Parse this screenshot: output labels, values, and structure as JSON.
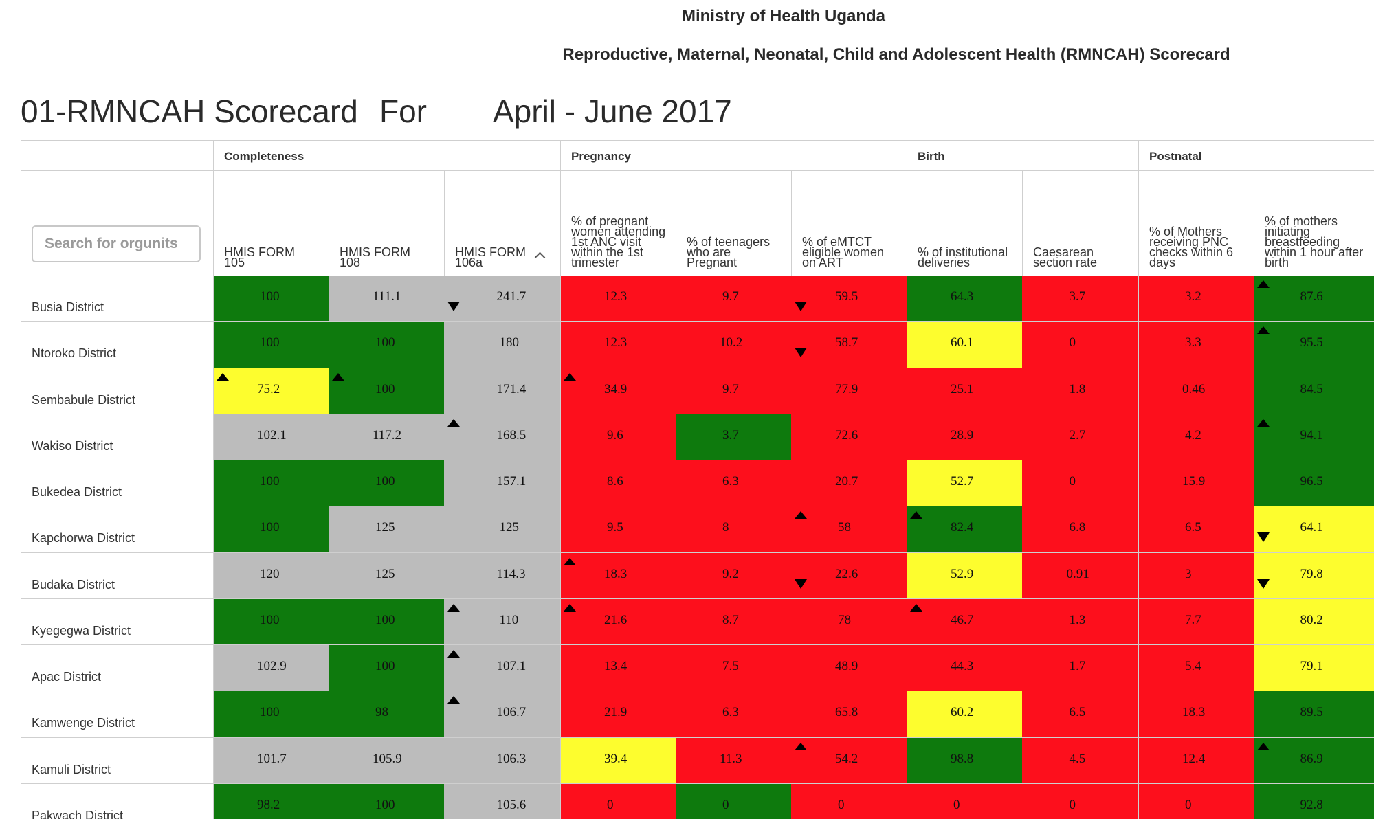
{
  "header": {
    "ministry": "Ministry of Health Uganda",
    "subtitle": "Reproductive, Maternal, Neonatal, Child and Adolescent Health (RMNCAH) Scorecard"
  },
  "scorecard": {
    "name": "01-RMNCAH Scorecard",
    "for_label": "For",
    "period": "April - June 2017"
  },
  "search": {
    "placeholder": "Search for orgunits"
  },
  "colors": {
    "green": "#0e7a0d",
    "red": "#fd0f1c",
    "yellow": "#fdfd2e",
    "grey": "#bcbcbc"
  },
  "groups": [
    {
      "label": "Completeness"
    },
    {
      "label": "Pregnancy"
    },
    {
      "label": "Birth"
    },
    {
      "label": "Postnatal"
    }
  ],
  "columns": [
    {
      "label": "HMIS FORM 105"
    },
    {
      "label": "HMIS FORM 108"
    },
    {
      "label": "HMIS FORM 106a",
      "sorted": "ascending"
    },
    {
      "label": "% of pregnant women attending 1st ANC visit within the 1st trimester"
    },
    {
      "label": "% of teenagers who are Pregnant"
    },
    {
      "label": "% of eMTCT eligible women on ART"
    },
    {
      "label": "% of institutional deliveries"
    },
    {
      "label": "Caesarean section rate"
    },
    {
      "label": "% of Mothers receiving PNC checks within 6 days"
    },
    {
      "label": "% of mothers initiating breastfeeding within 1 hour after birth"
    }
  ],
  "rows": [
    {
      "district": "Busia District",
      "cells": [
        {
          "value": "100",
          "color": "green",
          "trend": ""
        },
        {
          "value": "111.1",
          "color": "grey",
          "trend": ""
        },
        {
          "value": "241.7",
          "color": "grey",
          "trend": "down"
        },
        {
          "value": "12.3",
          "color": "red",
          "trend": ""
        },
        {
          "value": "9.7",
          "color": "red",
          "trend": ""
        },
        {
          "value": "59.5",
          "color": "red",
          "trend": "down"
        },
        {
          "value": "64.3",
          "color": "green",
          "trend": ""
        },
        {
          "value": "3.7",
          "color": "red",
          "trend": ""
        },
        {
          "value": "3.2",
          "color": "red",
          "trend": ""
        },
        {
          "value": "87.6",
          "color": "green",
          "trend": "up"
        }
      ]
    },
    {
      "district": "Ntoroko District",
      "cells": [
        {
          "value": "100",
          "color": "green",
          "trend": ""
        },
        {
          "value": "100",
          "color": "green",
          "trend": ""
        },
        {
          "value": "180",
          "color": "grey",
          "trend": ""
        },
        {
          "value": "12.3",
          "color": "red",
          "trend": ""
        },
        {
          "value": "10.2",
          "color": "red",
          "trend": ""
        },
        {
          "value": "58.7",
          "color": "red",
          "trend": "down"
        },
        {
          "value": "60.1",
          "color": "yellow",
          "trend": ""
        },
        {
          "value": "0",
          "color": "red",
          "trend": ""
        },
        {
          "value": "3.3",
          "color": "red",
          "trend": ""
        },
        {
          "value": "95.5",
          "color": "green",
          "trend": "up"
        }
      ]
    },
    {
      "district": "Sembabule District",
      "cells": [
        {
          "value": "75.2",
          "color": "yellow",
          "trend": "up"
        },
        {
          "value": "100",
          "color": "green",
          "trend": "up"
        },
        {
          "value": "171.4",
          "color": "grey",
          "trend": ""
        },
        {
          "value": "34.9",
          "color": "red",
          "trend": "up"
        },
        {
          "value": "9.7",
          "color": "red",
          "trend": ""
        },
        {
          "value": "77.9",
          "color": "red",
          "trend": ""
        },
        {
          "value": "25.1",
          "color": "red",
          "trend": ""
        },
        {
          "value": "1.8",
          "color": "red",
          "trend": ""
        },
        {
          "value": "0.46",
          "color": "red",
          "trend": ""
        },
        {
          "value": "84.5",
          "color": "green",
          "trend": ""
        }
      ]
    },
    {
      "district": "Wakiso District",
      "cells": [
        {
          "value": "102.1",
          "color": "grey",
          "trend": ""
        },
        {
          "value": "117.2",
          "color": "grey",
          "trend": ""
        },
        {
          "value": "168.5",
          "color": "grey",
          "trend": "up"
        },
        {
          "value": "9.6",
          "color": "red",
          "trend": ""
        },
        {
          "value": "3.7",
          "color": "green",
          "trend": ""
        },
        {
          "value": "72.6",
          "color": "red",
          "trend": ""
        },
        {
          "value": "28.9",
          "color": "red",
          "trend": ""
        },
        {
          "value": "2.7",
          "color": "red",
          "trend": ""
        },
        {
          "value": "4.2",
          "color": "red",
          "trend": ""
        },
        {
          "value": "94.1",
          "color": "green",
          "trend": "up"
        }
      ]
    },
    {
      "district": "Bukedea District",
      "cells": [
        {
          "value": "100",
          "color": "green",
          "trend": ""
        },
        {
          "value": "100",
          "color": "green",
          "trend": ""
        },
        {
          "value": "157.1",
          "color": "grey",
          "trend": ""
        },
        {
          "value": "8.6",
          "color": "red",
          "trend": ""
        },
        {
          "value": "6.3",
          "color": "red",
          "trend": ""
        },
        {
          "value": "20.7",
          "color": "red",
          "trend": ""
        },
        {
          "value": "52.7",
          "color": "yellow",
          "trend": ""
        },
        {
          "value": "0",
          "color": "red",
          "trend": ""
        },
        {
          "value": "15.9",
          "color": "red",
          "trend": ""
        },
        {
          "value": "96.5",
          "color": "green",
          "trend": ""
        }
      ]
    },
    {
      "district": "Kapchorwa District",
      "cells": [
        {
          "value": "100",
          "color": "green",
          "trend": ""
        },
        {
          "value": "125",
          "color": "grey",
          "trend": ""
        },
        {
          "value": "125",
          "color": "grey",
          "trend": ""
        },
        {
          "value": "9.5",
          "color": "red",
          "trend": ""
        },
        {
          "value": "8",
          "color": "red",
          "trend": ""
        },
        {
          "value": "58",
          "color": "red",
          "trend": "up"
        },
        {
          "value": "82.4",
          "color": "green",
          "trend": "up"
        },
        {
          "value": "6.8",
          "color": "red",
          "trend": ""
        },
        {
          "value": "6.5",
          "color": "red",
          "trend": ""
        },
        {
          "value": "64.1",
          "color": "yellow",
          "trend": "down"
        }
      ]
    },
    {
      "district": "Budaka District",
      "cells": [
        {
          "value": "120",
          "color": "grey",
          "trend": ""
        },
        {
          "value": "125",
          "color": "grey",
          "trend": ""
        },
        {
          "value": "114.3",
          "color": "grey",
          "trend": ""
        },
        {
          "value": "18.3",
          "color": "red",
          "trend": "up"
        },
        {
          "value": "9.2",
          "color": "red",
          "trend": ""
        },
        {
          "value": "22.6",
          "color": "red",
          "trend": "down"
        },
        {
          "value": "52.9",
          "color": "yellow",
          "trend": ""
        },
        {
          "value": "0.91",
          "color": "red",
          "trend": ""
        },
        {
          "value": "3",
          "color": "red",
          "trend": ""
        },
        {
          "value": "79.8",
          "color": "yellow",
          "trend": "down"
        }
      ]
    },
    {
      "district": "Kyegegwa District",
      "cells": [
        {
          "value": "100",
          "color": "green",
          "trend": ""
        },
        {
          "value": "100",
          "color": "green",
          "trend": ""
        },
        {
          "value": "110",
          "color": "grey",
          "trend": "up"
        },
        {
          "value": "21.6",
          "color": "red",
          "trend": "up"
        },
        {
          "value": "8.7",
          "color": "red",
          "trend": ""
        },
        {
          "value": "78",
          "color": "red",
          "trend": ""
        },
        {
          "value": "46.7",
          "color": "red",
          "trend": "up"
        },
        {
          "value": "1.3",
          "color": "red",
          "trend": ""
        },
        {
          "value": "7.7",
          "color": "red",
          "trend": ""
        },
        {
          "value": "80.2",
          "color": "yellow",
          "trend": ""
        }
      ]
    },
    {
      "district": "Apac District",
      "cells": [
        {
          "value": "102.9",
          "color": "grey",
          "trend": ""
        },
        {
          "value": "100",
          "color": "green",
          "trend": ""
        },
        {
          "value": "107.1",
          "color": "grey",
          "trend": "up"
        },
        {
          "value": "13.4",
          "color": "red",
          "trend": ""
        },
        {
          "value": "7.5",
          "color": "red",
          "trend": ""
        },
        {
          "value": "48.9",
          "color": "red",
          "trend": ""
        },
        {
          "value": "44.3",
          "color": "red",
          "trend": ""
        },
        {
          "value": "1.7",
          "color": "red",
          "trend": ""
        },
        {
          "value": "5.4",
          "color": "red",
          "trend": ""
        },
        {
          "value": "79.1",
          "color": "yellow",
          "trend": ""
        }
      ]
    },
    {
      "district": "Kamwenge District",
      "cells": [
        {
          "value": "100",
          "color": "green",
          "trend": ""
        },
        {
          "value": "98",
          "color": "green",
          "trend": ""
        },
        {
          "value": "106.7",
          "color": "grey",
          "trend": "up"
        },
        {
          "value": "21.9",
          "color": "red",
          "trend": ""
        },
        {
          "value": "6.3",
          "color": "red",
          "trend": ""
        },
        {
          "value": "65.8",
          "color": "red",
          "trend": ""
        },
        {
          "value": "60.2",
          "color": "yellow",
          "trend": ""
        },
        {
          "value": "6.5",
          "color": "red",
          "trend": ""
        },
        {
          "value": "18.3",
          "color": "red",
          "trend": ""
        },
        {
          "value": "89.5",
          "color": "green",
          "trend": ""
        }
      ]
    },
    {
      "district": "Kamuli District",
      "cells": [
        {
          "value": "101.7",
          "color": "grey",
          "trend": ""
        },
        {
          "value": "105.9",
          "color": "grey",
          "trend": ""
        },
        {
          "value": "106.3",
          "color": "grey",
          "trend": ""
        },
        {
          "value": "39.4",
          "color": "yellow",
          "trend": ""
        },
        {
          "value": "11.3",
          "color": "red",
          "trend": ""
        },
        {
          "value": "54.2",
          "color": "red",
          "trend": "up"
        },
        {
          "value": "98.8",
          "color": "green",
          "trend": ""
        },
        {
          "value": "4.5",
          "color": "red",
          "trend": ""
        },
        {
          "value": "12.4",
          "color": "red",
          "trend": ""
        },
        {
          "value": "86.9",
          "color": "green",
          "trend": "up"
        }
      ]
    },
    {
      "district": "Pakwach District",
      "cells": [
        {
          "value": "98.2",
          "color": "green",
          "trend": ""
        },
        {
          "value": "100",
          "color": "green",
          "trend": ""
        },
        {
          "value": "105.6",
          "color": "grey",
          "trend": ""
        },
        {
          "value": "0",
          "color": "red",
          "trend": ""
        },
        {
          "value": "0",
          "color": "green",
          "trend": ""
        },
        {
          "value": "0",
          "color": "red",
          "trend": ""
        },
        {
          "value": "0",
          "color": "red",
          "trend": ""
        },
        {
          "value": "0",
          "color": "red",
          "trend": ""
        },
        {
          "value": "0",
          "color": "red",
          "trend": ""
        },
        {
          "value": "92.8",
          "color": "green",
          "trend": ""
        }
      ]
    }
  ]
}
